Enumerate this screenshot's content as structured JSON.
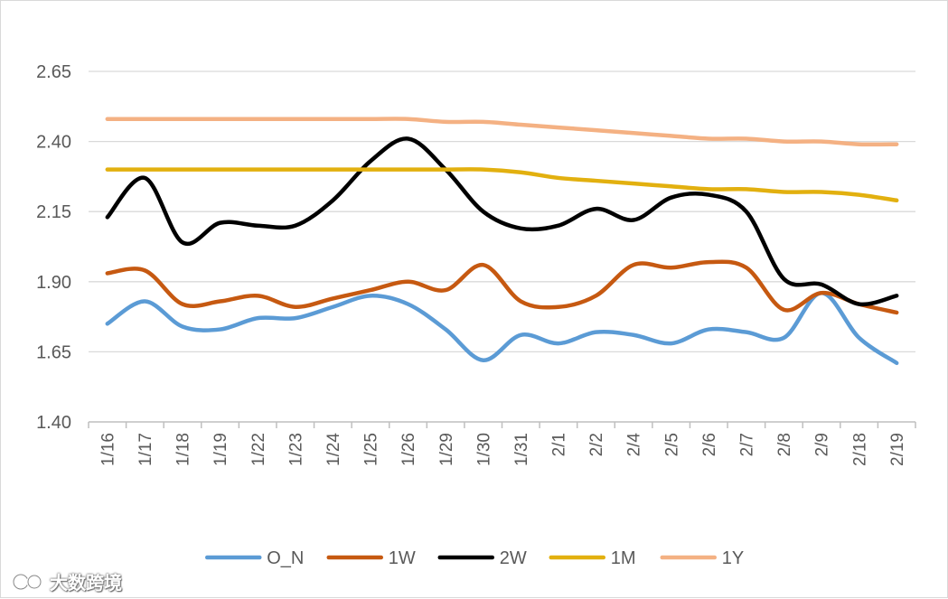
{
  "chart_data": {
    "type": "line",
    "title": "",
    "xlabel": "",
    "ylabel": "",
    "ylim": [
      1.4,
      2.65
    ],
    "yticks": [
      "1.40",
      "1.65",
      "1.90",
      "2.15",
      "2.40",
      "2.65"
    ],
    "categories": [
      "1/16",
      "1/17",
      "1/18",
      "1/19",
      "1/22",
      "1/23",
      "1/24",
      "1/25",
      "1/26",
      "1/29",
      "1/30",
      "1/31",
      "2/1",
      "2/2",
      "2/4",
      "2/5",
      "2/6",
      "2/7",
      "2/8",
      "2/9",
      "2/18",
      "2/19"
    ],
    "grid": "horizontal",
    "legend": "bottom",
    "series": [
      {
        "name": "O_N",
        "color": "#5b9bd5",
        "values": [
          1.75,
          1.83,
          1.74,
          1.73,
          1.77,
          1.77,
          1.81,
          1.85,
          1.82,
          1.73,
          1.62,
          1.71,
          1.68,
          1.72,
          1.71,
          1.68,
          1.73,
          1.72,
          1.7,
          1.86,
          1.7,
          1.61
        ]
      },
      {
        "name": "1W",
        "color": "#c65911",
        "values": [
          1.93,
          1.94,
          1.82,
          1.83,
          1.85,
          1.81,
          1.84,
          1.87,
          1.9,
          1.87,
          1.96,
          1.83,
          1.81,
          1.85,
          1.96,
          1.95,
          1.97,
          1.95,
          1.8,
          1.86,
          1.82,
          1.79
        ]
      },
      {
        "name": "2W",
        "color": "#000000",
        "values": [
          2.13,
          2.27,
          2.04,
          2.11,
          2.1,
          2.1,
          2.19,
          2.33,
          2.41,
          2.3,
          2.15,
          2.09,
          2.1,
          2.16,
          2.12,
          2.2,
          2.21,
          2.15,
          1.91,
          1.89,
          1.82,
          1.85
        ]
      },
      {
        "name": "1M",
        "color": "#e2b00f",
        "values": [
          2.3,
          2.3,
          2.3,
          2.3,
          2.3,
          2.3,
          2.3,
          2.3,
          2.3,
          2.3,
          2.3,
          2.29,
          2.27,
          2.26,
          2.25,
          2.24,
          2.23,
          2.23,
          2.22,
          2.22,
          2.21,
          2.19
        ]
      },
      {
        "name": "1Y",
        "color": "#f4b183",
        "values": [
          2.48,
          2.48,
          2.48,
          2.48,
          2.48,
          2.48,
          2.48,
          2.48,
          2.48,
          2.47,
          2.47,
          2.46,
          2.45,
          2.44,
          2.43,
          2.42,
          2.41,
          2.41,
          2.4,
          2.4,
          2.39,
          2.39
        ]
      }
    ]
  },
  "watermark": {
    "text": "大数跨境"
  }
}
